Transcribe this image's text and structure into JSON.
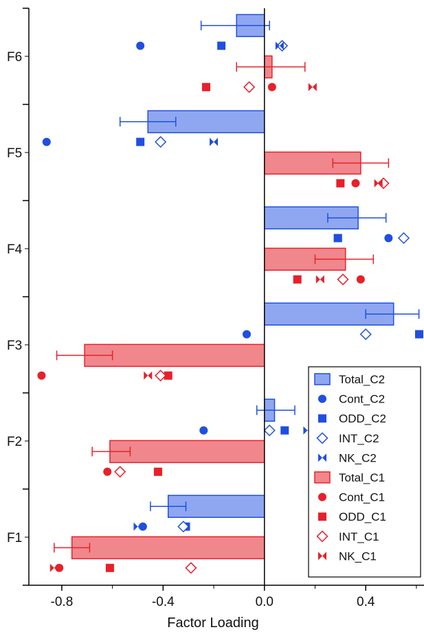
{
  "chart_data": {
    "type": "bar",
    "orientation": "horizontal",
    "xlabel": "Factor Loading",
    "ylabel": "",
    "xlim": [
      -0.93,
      0.63
    ],
    "x_ticks": [
      -0.8,
      -0.4,
      0.0,
      0.4
    ],
    "x_tick_labels": [
      "-0.8",
      "-0.4",
      "0.0",
      "0.4"
    ],
    "categories": [
      "F6",
      "F5",
      "F4",
      "F3",
      "F2",
      "F1"
    ],
    "colors": {
      "C2": "#1f4fe0",
      "C1": "#e8202a",
      "C2_fill": "#8fa7f0",
      "C1_fill": "#f0878c"
    },
    "bars": [
      {
        "name": "Total_C2",
        "values": [
          -0.11,
          -0.46,
          0.37,
          0.51,
          0.04,
          -0.38
        ],
        "err_low": [
          -0.25,
          -0.57,
          0.25,
          0.4,
          -0.03,
          -0.45
        ],
        "err_high": [
          0.02,
          -0.35,
          0.48,
          0.61,
          0.12,
          -0.31
        ]
      },
      {
        "name": "Total_C1",
        "values": [
          0.03,
          0.38,
          0.32,
          -0.71,
          -0.61,
          -0.76
        ],
        "err_low": [
          -0.11,
          0.27,
          0.2,
          -0.82,
          -0.68,
          -0.83
        ],
        "err_high": [
          0.16,
          0.49,
          0.43,
          -0.6,
          -0.53,
          -0.69
        ]
      }
    ],
    "series": [
      {
        "name": "Cont_C2",
        "group": "C2",
        "marker": "circle",
        "values": [
          -0.49,
          -0.86,
          0.49,
          -0.07,
          -0.24,
          -0.48
        ]
      },
      {
        "name": "ODD_C2",
        "group": "C2",
        "marker": "square",
        "values": [
          -0.17,
          -0.49,
          0.29,
          0.63,
          0.08,
          -0.31
        ]
      },
      {
        "name": "INT_C2",
        "group": "C2",
        "marker": "diamond",
        "values": [
          0.07,
          -0.41,
          0.55,
          0.4,
          0.02,
          -0.32
        ]
      },
      {
        "name": "NK_C2",
        "group": "C2",
        "marker": "bowtie",
        "values": [
          0.06,
          -0.2,
          0.29,
          0.62,
          0.17,
          -0.5
        ]
      },
      {
        "name": "Cont_C1",
        "group": "C1",
        "marker": "circle",
        "values": [
          0.03,
          0.36,
          0.38,
          -0.88,
          -0.62,
          -0.81
        ]
      },
      {
        "name": "ODD_C1",
        "group": "C1",
        "marker": "square",
        "values": [
          -0.23,
          0.3,
          0.13,
          -0.38,
          -0.42,
          -0.61
        ]
      },
      {
        "name": "INT_C1",
        "group": "C1",
        "marker": "diamond",
        "values": [
          -0.06,
          0.47,
          0.31,
          -0.41,
          -0.57,
          -0.29
        ]
      },
      {
        "name": "NK_C1",
        "group": "C1",
        "marker": "bowtie",
        "values": [
          0.19,
          0.45,
          0.22,
          -0.46,
          null,
          -0.83
        ]
      }
    ],
    "legend": {
      "placement": "bottom-right",
      "entries": [
        {
          "label": "Total_C2",
          "marker": "bar",
          "group": "C2"
        },
        {
          "label": "Cont_C2",
          "marker": "circle",
          "group": "C2"
        },
        {
          "label": "ODD_C2",
          "marker": "square",
          "group": "C2"
        },
        {
          "label": "INT_C2",
          "marker": "diamond",
          "group": "C2"
        },
        {
          "label": "NK_C2",
          "marker": "bowtie",
          "group": "C2"
        },
        {
          "label": "Total_C1",
          "marker": "bar",
          "group": "C1"
        },
        {
          "label": "Cont_C1",
          "marker": "circle",
          "group": "C1"
        },
        {
          "label": "ODD_C1",
          "marker": "square",
          "group": "C1"
        },
        {
          "label": "INT_C1",
          "marker": "diamond",
          "group": "C1"
        },
        {
          "label": "NK_C1",
          "marker": "bowtie",
          "group": "C1"
        }
      ]
    },
    "grid": false
  }
}
